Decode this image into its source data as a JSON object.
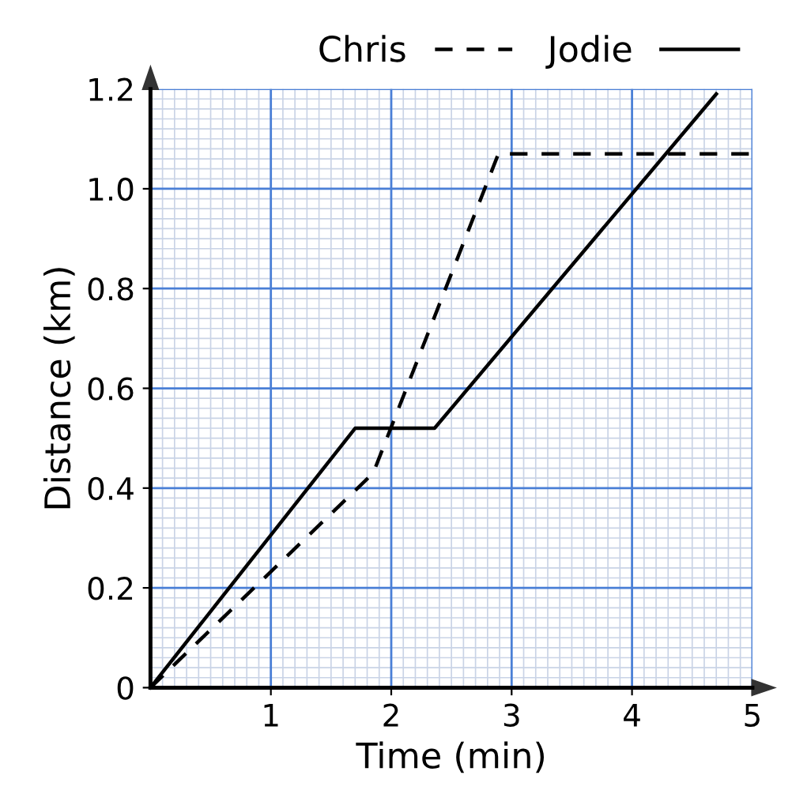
{
  "chart_data": {
    "type": "line",
    "xlabel": "Time (min)",
    "ylabel": "Distance (km)",
    "series": [
      {
        "name": "Chris",
        "color": "#000000",
        "line_style": "dashed",
        "x": [
          0,
          1.85,
          2.89,
          5
        ],
        "values": [
          0,
          0.43,
          1.07,
          1.07
        ]
      },
      {
        "name": "Jodie",
        "color": "#000000",
        "line_style": "solid",
        "x": [
          0,
          1.7,
          2.36,
          4.7
        ],
        "values": [
          0,
          0.52,
          0.52,
          1.19
        ]
      }
    ],
    "xlim": [
      0,
      5
    ],
    "ylim": [
      0,
      1.2
    ],
    "xticks": [
      1,
      2,
      3,
      4,
      5
    ],
    "yticks": [
      0,
      0.2,
      0.4,
      0.6,
      0.8,
      {
        "value": 1.0,
        "label": "1.0"
      },
      1.2
    ],
    "grid": true,
    "legend": "top right",
    "marker": "none"
  }
}
